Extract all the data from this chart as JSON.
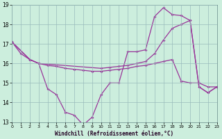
{
  "xlabel": "Windchill (Refroidissement éolien,°C)",
  "background_color": "#cceedd",
  "line_color": "#993399",
  "grid_color": "#99bbbb",
  "xlim": [
    0,
    23
  ],
  "ylim": [
    13,
    19
  ],
  "yticks": [
    13,
    14,
    15,
    16,
    17,
    18,
    19
  ],
  "xticks": [
    0,
    1,
    2,
    3,
    4,
    5,
    6,
    7,
    8,
    9,
    10,
    11,
    12,
    13,
    14,
    15,
    16,
    17,
    18,
    19,
    20,
    21,
    22,
    23
  ],
  "line1_x": [
    0,
    1,
    2,
    3,
    4,
    5,
    6,
    7,
    8,
    9,
    10,
    11,
    12,
    13,
    14,
    15,
    16,
    17,
    18,
    19,
    20,
    21,
    22,
    23
  ],
  "line1_y": [
    17.1,
    16.5,
    16.2,
    16.0,
    14.7,
    14.4,
    13.5,
    13.35,
    12.85,
    13.25,
    14.4,
    15.0,
    15.0,
    16.6,
    16.6,
    16.7,
    18.4,
    18.85,
    18.5,
    18.45,
    18.2,
    14.8,
    14.5,
    14.8
  ],
  "line2_x": [
    0,
    2,
    3,
    10,
    11,
    12,
    13,
    14,
    15,
    16,
    17,
    18,
    19,
    20,
    21,
    22,
    23
  ],
  "line2_y": [
    17.1,
    16.2,
    16.0,
    15.75,
    15.8,
    15.85,
    15.9,
    16.0,
    16.1,
    16.5,
    17.2,
    17.8,
    18.0,
    18.2,
    14.8,
    14.5,
    14.8
  ],
  "line3_x": [
    0,
    2,
    3,
    4,
    5,
    6,
    7,
    8,
    9,
    10,
    11,
    12,
    13,
    14,
    15,
    16,
    17,
    18,
    19,
    20,
    21,
    22,
    23
  ],
  "line3_y": [
    17.1,
    16.2,
    16.0,
    15.9,
    15.85,
    15.75,
    15.7,
    15.65,
    15.6,
    15.6,
    15.65,
    15.7,
    15.75,
    15.85,
    15.9,
    16.0,
    16.1,
    16.2,
    15.1,
    15.0,
    15.0,
    14.8,
    14.8
  ]
}
